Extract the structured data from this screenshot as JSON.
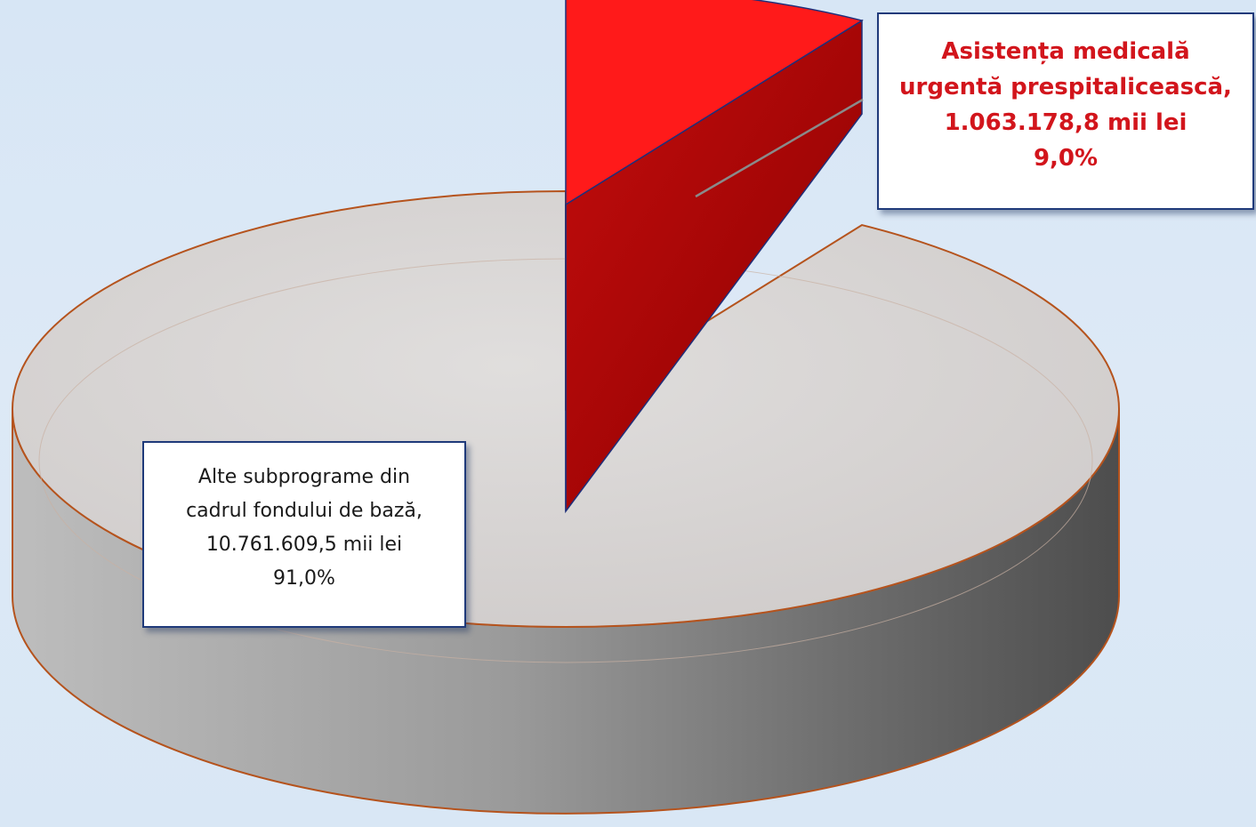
{
  "chart_data": {
    "type": "pie",
    "style": "3d",
    "slices": [
      {
        "label_lines": [
          "Asistența medicală",
          "urgentă prespitalicească,"
        ],
        "value_text": "1.063.178,8 mii lei",
        "percent_text": "9,0%",
        "value": 1063178.8,
        "percent": 9.0,
        "color": "#ff1a1a",
        "label_color": "#d2151c"
      },
      {
        "label_lines": [
          "Alte subprograme din",
          "cadrul fondului de bază,"
        ],
        "value_text": "10.761.609,5 mii lei",
        "percent_text": "91,0%",
        "value": 10761609.5,
        "percent": 91.0,
        "color": "#d6d3d2",
        "label_color": "#1a1a1a"
      }
    ]
  }
}
